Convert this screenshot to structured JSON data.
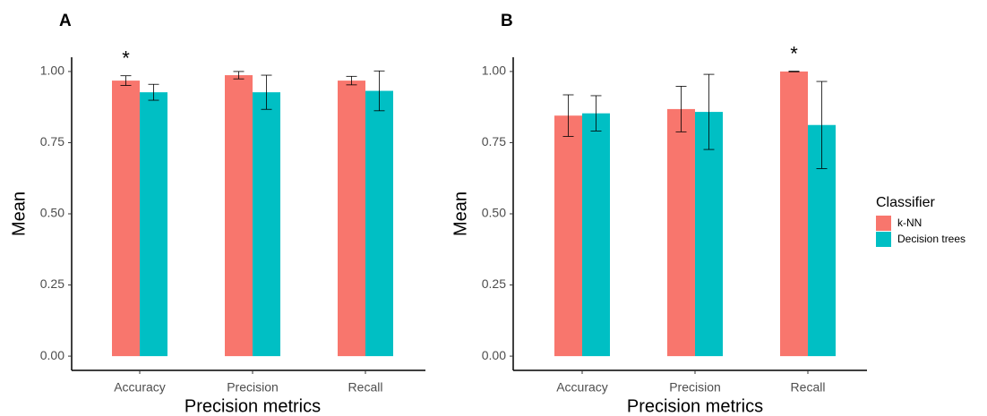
{
  "chart_data": [
    {
      "type": "bar",
      "label": "A",
      "x_label": "Precision metrics",
      "y_label": "Mean",
      "categories": [
        "Accuracy",
        "Precision",
        "Recall"
      ],
      "legend_title": "Classifier",
      "series": [
        {
          "name": "k-NN",
          "color": "#f8766d",
          "values": [
            0.968,
            0.987,
            0.968
          ],
          "errors": [
            0.017,
            0.013,
            0.015
          ]
        },
        {
          "name": "Decision trees",
          "color": "#00bfc4",
          "values": [
            0.927,
            0.927,
            0.932
          ],
          "errors": [
            0.028,
            0.06,
            0.07
          ]
        }
      ],
      "annotations": [
        {
          "text": "*",
          "x": "Accuracy"
        }
      ],
      "ylim": [
        -0.05,
        1.05
      ],
      "yticks": [
        {
          "value": 0,
          "label": "0.00"
        },
        {
          "value": 0.25,
          "label": "0.25"
        },
        {
          "value": 0.5,
          "label": "0.50"
        },
        {
          "value": 0.75,
          "label": "0.75"
        },
        {
          "value": 1,
          "label": "1.00"
        }
      ]
    },
    {
      "type": "bar",
      "label": "B",
      "x_label": "Precision metrics",
      "y_label": "Mean",
      "categories": [
        "Accuracy",
        "Precision",
        "Recall"
      ],
      "series": [
        {
          "color": "#f8766d",
          "values": [
            0.845,
            0.868,
            1.0
          ],
          "errors": [
            0.073,
            0.08,
            0.001
          ]
        },
        {
          "color": "#00bfc4",
          "values": [
            0.853,
            0.858,
            0.812
          ],
          "errors": [
            0.062,
            0.132,
            0.153
          ]
        }
      ],
      "annotations": [
        {
          "text": "*",
          "x": "Recall"
        }
      ],
      "ylim": [
        -0.05,
        1.05
      ],
      "yticks": [
        {
          "value": 0,
          "label": "0.00"
        },
        {
          "value": 0.25,
          "label": "0.25"
        },
        {
          "value": 0.5,
          "label": "0.50"
        },
        {
          "value": 0.75,
          "label": "0.75"
        },
        {
          "value": 1,
          "label": "1.00"
        }
      ]
    }
  ]
}
